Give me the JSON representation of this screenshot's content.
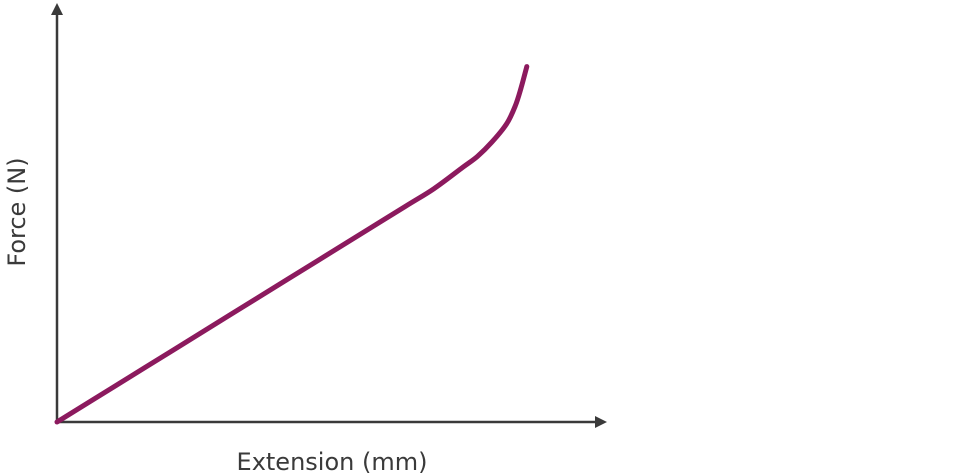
{
  "chart_data": {
    "type": "line",
    "title": "",
    "xlabel": "Extension (mm)",
    "ylabel": "Force (N)",
    "x_ticks_shown": false,
    "y_ticks_shown": false,
    "grid": false,
    "legend": "none",
    "xlim": [
      0,
      100
    ],
    "ylim": [
      0,
      100
    ],
    "series": [
      {
        "color": "#8c1a5e",
        "x": [
          0,
          10,
          20,
          30,
          40,
          50,
          60,
          65,
          70,
          72.5,
          75,
          77.5,
          79,
          80,
          81
        ],
        "y": [
          0,
          10,
          20,
          30,
          40,
          50,
          60,
          65,
          71,
          74,
          78,
          83,
          88,
          93,
          99
        ]
      }
    ]
  }
}
